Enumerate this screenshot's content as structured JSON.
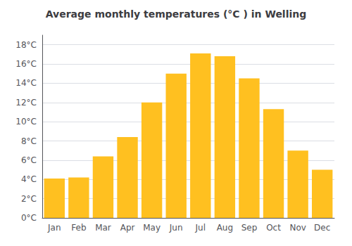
{
  "chart_data": {
    "type": "bar",
    "title": "Average monthly temperatures (°C ) in Welling",
    "categories": [
      "Jan",
      "Feb",
      "Mar",
      "Apr",
      "May",
      "Jun",
      "Jul",
      "Aug",
      "Sep",
      "Oct",
      "Nov",
      "Dec"
    ],
    "values": [
      4.1,
      4.2,
      6.4,
      8.4,
      12.0,
      15.0,
      17.1,
      16.8,
      14.5,
      11.3,
      7.0,
      5.0
    ],
    "color": "#FFC020",
    "ylim": [
      0,
      19
    ],
    "yticks": [
      {
        "value": 0,
        "label": "0°C"
      },
      {
        "value": 2,
        "label": "2°C"
      },
      {
        "value": 4,
        "label": "4°C"
      },
      {
        "value": 6,
        "label": "6°C"
      },
      {
        "value": 8,
        "label": "8°C"
      },
      {
        "value": 10,
        "label": "10°C"
      },
      {
        "value": 12,
        "label": "12°C"
      },
      {
        "value": 14,
        "label": "14°C"
      },
      {
        "value": 16,
        "label": "16°C"
      },
      {
        "value": 18,
        "label": "18°C"
      }
    ],
    "grid": true
  }
}
